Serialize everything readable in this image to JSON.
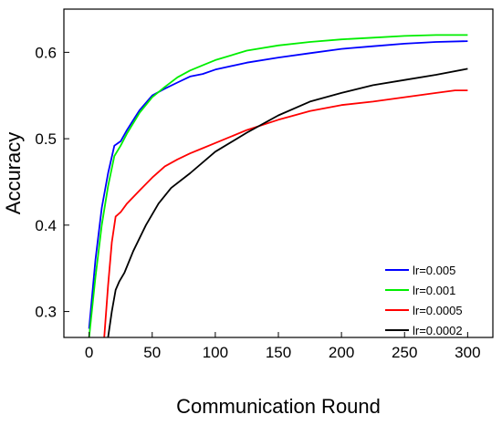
{
  "chart_data": {
    "type": "line",
    "xlabel": "Communication Round",
    "ylabel": "Accuracy",
    "xlim": [
      -20,
      320
    ],
    "ylim": [
      0.27,
      0.65
    ],
    "xticks": [
      0,
      50,
      100,
      150,
      200,
      250,
      300
    ],
    "yticks": [
      0.3,
      0.4,
      0.5,
      0.6
    ],
    "xtick_labels": [
      "0",
      "50",
      "100",
      "150",
      "200",
      "250",
      "300"
    ],
    "ytick_labels": [
      "0.3",
      "0.4",
      "0.5",
      "0.6"
    ],
    "grid": false,
    "legend_position": "bottom-right",
    "series": [
      {
        "name": "lr=0.005",
        "color": "#0000ff",
        "x": [
          0,
          5,
          10,
          15,
          20,
          25,
          30,
          40,
          50,
          60,
          70,
          80,
          90,
          100,
          125,
          150,
          175,
          200,
          225,
          250,
          275,
          300
        ],
        "y": [
          0.28,
          0.36,
          0.42,
          0.46,
          0.492,
          0.497,
          0.51,
          0.533,
          0.55,
          0.558,
          0.565,
          0.572,
          0.575,
          0.58,
          0.588,
          0.594,
          0.599,
          0.604,
          0.607,
          0.61,
          0.612,
          0.613
        ]
      },
      {
        "name": "lr=0.001",
        "color": "#00ee00",
        "x": [
          0,
          5,
          10,
          15,
          20,
          25,
          30,
          40,
          50,
          60,
          70,
          80,
          90,
          100,
          125,
          150,
          175,
          200,
          225,
          250,
          275,
          300
        ],
        "y": [
          0.27,
          0.34,
          0.4,
          0.445,
          0.48,
          0.492,
          0.506,
          0.53,
          0.548,
          0.56,
          0.571,
          0.579,
          0.585,
          0.591,
          0.602,
          0.608,
          0.612,
          0.615,
          0.617,
          0.619,
          0.62,
          0.62
        ]
      },
      {
        "name": "lr=0.0005",
        "color": "#ff0000",
        "x": [
          12,
          15,
          18,
          21,
          25,
          30,
          40,
          50,
          60,
          70,
          80,
          90,
          100,
          125,
          150,
          175,
          200,
          225,
          250,
          275,
          290,
          300
        ],
        "y": [
          0.27,
          0.33,
          0.38,
          0.41,
          0.415,
          0.425,
          0.44,
          0.455,
          0.468,
          0.476,
          0.483,
          0.489,
          0.495,
          0.51,
          0.522,
          0.532,
          0.539,
          0.543,
          0.548,
          0.553,
          0.556,
          0.556
        ]
      },
      {
        "name": "lr=0.0002",
        "color": "#000000",
        "x": [
          15,
          18,
          21,
          24,
          28,
          35,
          45,
          55,
          65,
          80,
          100,
          125,
          150,
          175,
          200,
          225,
          250,
          275,
          300
        ],
        "y": [
          0.27,
          0.3,
          0.325,
          0.335,
          0.345,
          0.37,
          0.4,
          0.425,
          0.443,
          0.46,
          0.485,
          0.507,
          0.527,
          0.543,
          0.553,
          0.562,
          0.568,
          0.574,
          0.581
        ]
      }
    ]
  }
}
